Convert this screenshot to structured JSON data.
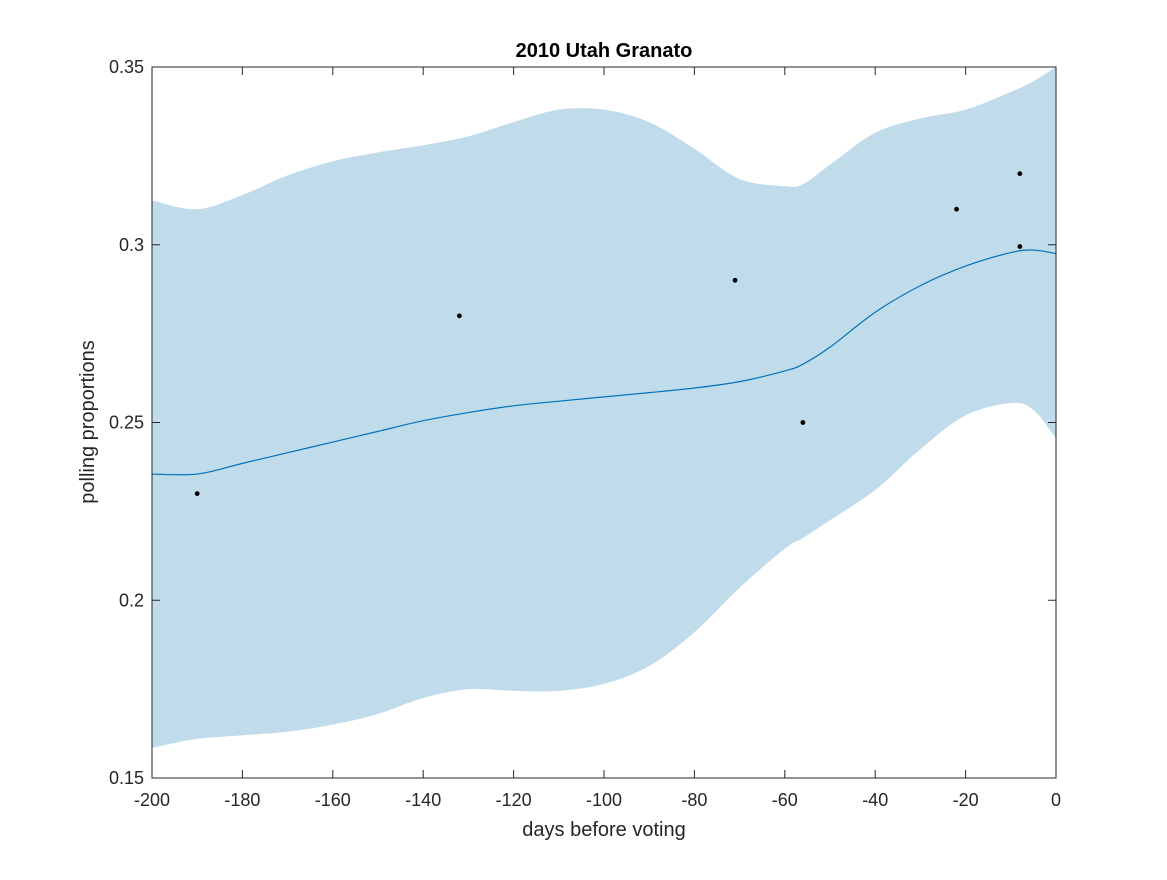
{
  "chart_data": {
    "type": "line",
    "title": "2010 Utah Granato",
    "xlabel": "days before voting",
    "ylabel": "polling proportions",
    "xlim": [
      -200,
      0
    ],
    "ylim": [
      0.15,
      0.35
    ],
    "xticks": [
      -200,
      -180,
      -160,
      -140,
      -120,
      -100,
      -80,
      -60,
      -40,
      -20,
      0
    ],
    "xtick_labels": [
      "-200",
      "-180",
      "-160",
      "-140",
      "-120",
      "-100",
      "-80",
      "-60",
      "-40",
      "-20",
      "0"
    ],
    "yticks": [
      0.15,
      0.2,
      0.25,
      0.3,
      0.35
    ],
    "ytick_labels": [
      "0.15",
      "0.2",
      "0.25",
      "0.3",
      "0.35"
    ],
    "grid": false,
    "colors": {
      "band": "#c0dcea",
      "line": "#0072bd",
      "points": "#000000",
      "axes": "#262626"
    },
    "band": {
      "x": [
        -200,
        -190,
        -180,
        -170,
        -160,
        -150,
        -140,
        -130,
        -120,
        -110,
        -100,
        -90,
        -80,
        -70,
        -60,
        -56,
        -50,
        -40,
        -30,
        -20,
        -10,
        -5,
        0
      ],
      "upper": [
        0.3125,
        0.31,
        0.314,
        0.3195,
        0.3235,
        0.326,
        0.328,
        0.3305,
        0.3345,
        0.338,
        0.338,
        0.3345,
        0.327,
        0.3185,
        0.3165,
        0.317,
        0.3225,
        0.3315,
        0.3355,
        0.338,
        0.343,
        0.346,
        0.35
      ],
      "lower": [
        0.1585,
        0.161,
        0.162,
        0.163,
        0.165,
        0.168,
        0.1725,
        0.175,
        0.1745,
        0.1745,
        0.1765,
        0.1815,
        0.191,
        0.2035,
        0.2145,
        0.2175,
        0.2225,
        0.231,
        0.2425,
        0.252,
        0.2555,
        0.2535,
        0.2455
      ]
    },
    "series": [
      {
        "x": [
          -200,
          -190,
          -180,
          -170,
          -160,
          -150,
          -140,
          -130,
          -120,
          -110,
          -100,
          -90,
          -80,
          -70,
          -60,
          -56,
          -50,
          -40,
          -30,
          -20,
          -10,
          -5,
          0
        ],
        "values": [
          0.2355,
          0.2355,
          0.2385,
          0.2415,
          0.2445,
          0.2475,
          0.2505,
          0.2528,
          0.2547,
          0.256,
          0.2572,
          0.2584,
          0.2597,
          0.2615,
          0.2645,
          0.2664,
          0.2712,
          0.281,
          0.2885,
          0.294,
          0.2978,
          0.2985,
          0.2975
        ]
      }
    ],
    "points": [
      {
        "x": -190,
        "y": 0.23
      },
      {
        "x": -132,
        "y": 0.28
      },
      {
        "x": -71,
        "y": 0.29
      },
      {
        "x": -56,
        "y": 0.25
      },
      {
        "x": -22,
        "y": 0.31
      },
      {
        "x": -8,
        "y": 0.32
      },
      {
        "x": -8,
        "y": 0.2995
      }
    ]
  }
}
